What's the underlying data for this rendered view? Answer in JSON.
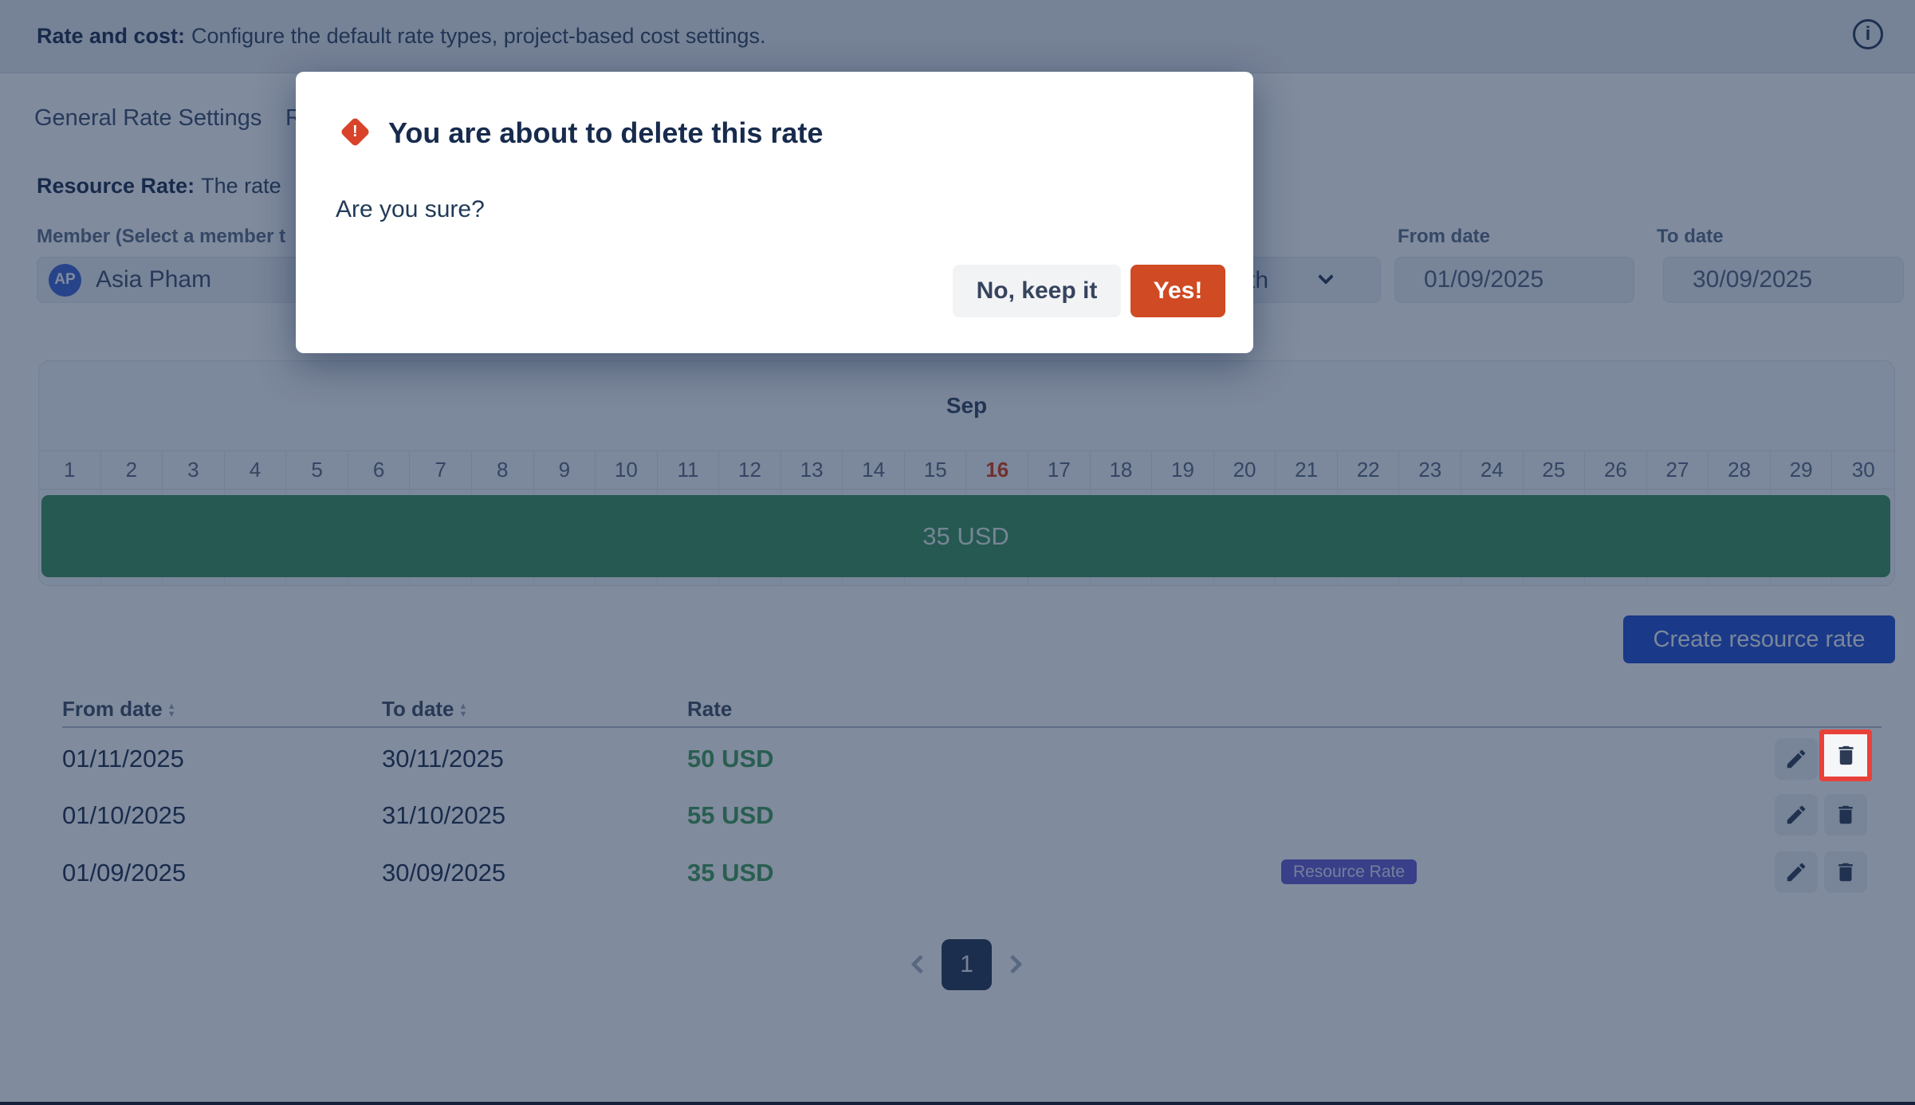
{
  "header": {
    "title_bold": "Rate and cost:",
    "title_desc": "Configure the default rate types, project-based cost settings."
  },
  "tabs": [
    {
      "label": "General Rate Settings"
    },
    {
      "label_visible": "R"
    }
  ],
  "section": {
    "heading_bold": "Resource Rate:",
    "desc_visible": "The rate"
  },
  "member": {
    "label_visible": "Member (Select a member t",
    "avatar_initials": "AP",
    "name": "Asia Pham"
  },
  "filters": {
    "period_visible": "th",
    "from_label": "From date",
    "from_value": "01/09/2025",
    "to_label": "To date",
    "to_value": "30/09/2025"
  },
  "calendar": {
    "month": "Sep",
    "days": [
      "1",
      "2",
      "3",
      "4",
      "5",
      "6",
      "7",
      "8",
      "9",
      "10",
      "11",
      "12",
      "13",
      "14",
      "15",
      "16",
      "17",
      "18",
      "19",
      "20",
      "21",
      "22",
      "23",
      "24",
      "25",
      "26",
      "27",
      "28",
      "29",
      "30"
    ],
    "highlighted_day": "16",
    "bar_label": "35 USD"
  },
  "actions": {
    "create_label": "Create resource rate"
  },
  "table": {
    "headers": [
      "From date",
      "To date",
      "Rate"
    ],
    "rows": [
      {
        "from": "01/11/2025",
        "to": "30/11/2025",
        "rate": "50 USD"
      },
      {
        "from": "01/10/2025",
        "to": "31/10/2025",
        "rate": "55 USD"
      },
      {
        "from": "01/09/2025",
        "to": "30/09/2025",
        "rate": "35 USD",
        "badge": "Resource Rate"
      }
    ]
  },
  "pagination": {
    "current": "1"
  },
  "dialog": {
    "title": "You are about to delete this rate",
    "body": "Are you sure?",
    "cancel_label": "No, keep it",
    "confirm_label": "Yes!"
  },
  "colors": {
    "blanket": "rgba(23,43,77,0.55)",
    "rate_bar_green": "#35905a",
    "rate_text_green": "#3f9b54",
    "confirm_red": "#d04a23",
    "warning_red": "#d8432a",
    "highlight_red": "#e8413a",
    "create_blue": "#1d49d0",
    "badge_purple": "#6257d2",
    "avatar_blue": "#3a62d8",
    "day_highlight_red": "#de350b",
    "navy_text": "#172b4d"
  }
}
